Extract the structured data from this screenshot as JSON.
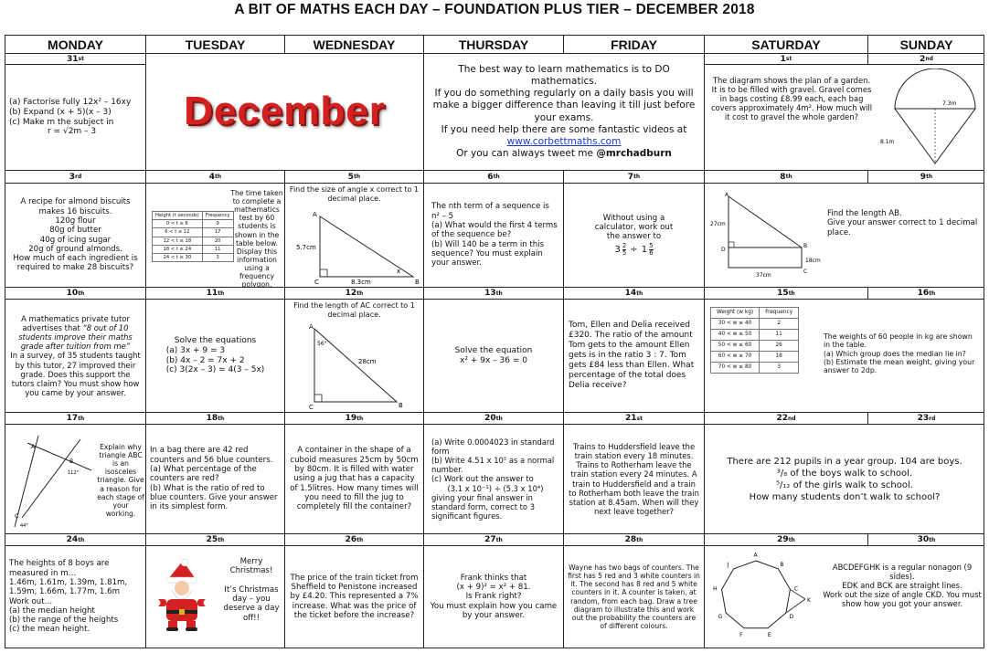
{
  "title": "A BIT OF MATHS EACH DAY – FOUNDATION PLUS TIER – DECEMBER 2018",
  "days": [
    "MONDAY",
    "TUESDAY",
    "WEDNESDAY",
    "THURSDAY",
    "FRIDAY",
    "SATURDAY",
    "SUNDAY"
  ],
  "dates": {
    "r1": [
      {
        "n": "31",
        "s": "st"
      },
      {
        "n": "",
        "s": ""
      },
      {
        "n": "",
        "s": ""
      },
      {
        "n": "",
        "s": ""
      },
      {
        "n": "",
        "s": ""
      },
      {
        "n": "1",
        "s": "st"
      },
      {
        "n": "2",
        "s": "nd"
      }
    ],
    "r2": [
      {
        "n": "3",
        "s": "rd"
      },
      {
        "n": "4",
        "s": "th"
      },
      {
        "n": "5",
        "s": "th"
      },
      {
        "n": "6",
        "s": "th"
      },
      {
        "n": "7",
        "s": "th"
      },
      {
        "n": "8",
        "s": "th"
      },
      {
        "n": "9",
        "s": "th"
      }
    ],
    "r3": [
      {
        "n": "10",
        "s": "th"
      },
      {
        "n": "11",
        "s": "th"
      },
      {
        "n": "12",
        "s": "th"
      },
      {
        "n": "13",
        "s": "th"
      },
      {
        "n": "14",
        "s": "th"
      },
      {
        "n": "15",
        "s": "th"
      },
      {
        "n": "16",
        "s": "th"
      }
    ],
    "r4": [
      {
        "n": "17",
        "s": "th"
      },
      {
        "n": "18",
        "s": "th"
      },
      {
        "n": "19",
        "s": "th"
      },
      {
        "n": "20",
        "s": "th"
      },
      {
        "n": "21",
        "s": "st"
      },
      {
        "n": "22",
        "s": "nd"
      },
      {
        "n": "23",
        "s": "rd"
      }
    ],
    "r5": [
      {
        "n": "24",
        "s": "th"
      },
      {
        "n": "25",
        "s": "th"
      },
      {
        "n": "26",
        "s": "th"
      },
      {
        "n": "27",
        "s": "th"
      },
      {
        "n": "28",
        "s": "th"
      },
      {
        "n": "29",
        "s": "th"
      },
      {
        "n": "30",
        "s": "th"
      }
    ]
  },
  "banner": "December",
  "intro": {
    "l1": "The best way to learn mathematics is to DO mathematics.",
    "l2": "If you do something regularly on a daily basis you will make a bigger difference than leaving it till just before your exams.",
    "l3": "If you need help there are some fantastic videos at",
    "link": "www.corbettmaths.com",
    "l4": "Or you can always tweet me",
    "handle": "@mrchadburn"
  },
  "q31": {
    "a": "(a)  Factorise fully 12x² – 16xy",
    "b": "(b)  Expand (x + 5)(x – 3)",
    "c": "(c)  Make m the subject in",
    "formula": "r = √2m – 3"
  },
  "q1": {
    "text": "The diagram shows the plan of a garden.  It is to be filled with gravel. Gravel comes in bags costing £8.99 each, each bag covers approximately 4m². How much will it cost to gravel the whole garden?",
    "d1": "7.3m",
    "d2": "8.1m"
  },
  "q3": {
    "lines": [
      "A recipe for almond biscuits makes 16 biscuits.",
      "120g flour",
      "80g of butter",
      "40g of icing sugar",
      "20g of ground almonds.",
      "How much of each ingredient is required to make 28 biscuits?"
    ]
  },
  "q4": {
    "text": "The time taken to complete a mathematics test by 60 students is shown in the table below. Display this information using a frequency polygon.",
    "headers": [
      "Height (t seconds)",
      "Frequency"
    ],
    "rows": [
      [
        "0 < t ≤ 6",
        "9"
      ],
      [
        "6 < t ≤ 12",
        "17"
      ],
      [
        "12 < t ≤ 18",
        "20"
      ],
      [
        "18 < t ≤ 24",
        "11"
      ],
      [
        "24 < t ≤ 30",
        "3"
      ]
    ]
  },
  "q5": {
    "text": "Find the size of angle x correct to 1 decimal place.",
    "a": "A",
    "b": "B",
    "c": "C",
    "s1": "5.7cm",
    "s2": "8.3cm",
    "x": "x"
  },
  "q6": {
    "l1": "The nth term of a sequence is n² – 5",
    "a": "(a)  What would the first 4 terms of the sequence be?",
    "b": "(b)  Will 140 be a term in this sequence?  You must explain your answer."
  },
  "q7": {
    "text": "Without using a calculator, work out the answer to",
    "w1": "3",
    "n1": "2",
    "d1": "5",
    "op": "÷",
    "w2": "1",
    "n2": "5",
    "d2": "6"
  },
  "q8": {
    "text": "Find the length AB.",
    "text2": "Give your answer correct to 1 decimal place.",
    "A": "A",
    "B": "B",
    "C": "C",
    "D": "D",
    "s1": "27cm",
    "s2": "18cm",
    "s3": "37cm"
  },
  "q10": {
    "p1": "A mathematics private tutor advertises that",
    "quote": "“8 out of 10 students improve their maths grade after tuition from me”",
    "p2": "In a survey, of 35 students taught by this tutor, 27 improved their grade. Does this support the tutors claim?  You must show how you came by your answer."
  },
  "q11": {
    "title": "Solve the equations",
    "a": "(a)  3x + 9 = 3",
    "b": "(b)  4x – 2 = 7x + 2",
    "c": "(c)  3(2x – 3) = 4(3 – 5x)"
  },
  "q12": {
    "text": "Find the length of AC correct to 1 decimal place.",
    "a": "A",
    "b": "B",
    "c": "C",
    "ang": "56°",
    "side": "28cm"
  },
  "q13": {
    "l1": "Solve the equation",
    "l2": "x² + 9x – 36 = 0"
  },
  "q14": {
    "text": "Tom, Ellen and Delia received £320.  The ratio of the amount Tom gets to the amount Ellen gets is in the ratio 3 : 7.  Tom gets £84 less than Ellen.  What percentage of the total does Delia receive?"
  },
  "q15": {
    "headers": [
      "Weight (w kg)",
      "Frequency"
    ],
    "rows": [
      [
        "30 < w ≤ 40",
        "2"
      ],
      [
        "40 < w ≤ 50",
        "11"
      ],
      [
        "50 < w ≤ 60",
        "26"
      ],
      [
        "60 < w ≤ 70",
        "18"
      ],
      [
        "70 < w ≤ 80",
        "3"
      ]
    ],
    "l1": "The weights of 60 people in kg are shown in the table.",
    "a": "(a) Which group does the median lie in?",
    "b": "(b) Estimate the mean weight, giving your answer to 2dp."
  },
  "q17": {
    "text": "Explain why triangle ABC is an isosceles triangle. Give a reason for each stage of your working.",
    "a": "A",
    "b": "B",
    "c": "C",
    "ang1": "112°",
    "ang2": "44°"
  },
  "q18": {
    "p1": "In a bag there are 42 red counters and 56 blue counters.",
    "a": "(a)  What percentage of the counters are red?",
    "b": "(b)  What is the ratio of red to blue counters.  Give your answer in its simplest form."
  },
  "q19": {
    "text": "A container in the shape of a cuboid measures 25cm by 50cm by 80cm.  It is filled with water using a jug that has a capacity of 1.5litres. How many times will you need to fill the jug to completely fill the container?"
  },
  "q20": {
    "a": "(a)  Write 0.0004023 in standard form",
    "b": "(b)  Write 4.51 x 10⁵ as a normal number.",
    "c": "(c)  Work out the answer to",
    "calc": "(3.1 x 10⁻¹) ÷ (5.3 x 10⁴)",
    "c2": "giving your final answer in standard form, correct to 3 significant figures."
  },
  "q21": {
    "text": "Trains to Huddersfield leave the train station every 18 minutes. Trains to Rotherham leave the train station every 24 minutes. A train to Huddersfield and a train to Rotherham both leave the train station at 8.45am. When will they next leave together?"
  },
  "q22": {
    "l1": "There are 212 pupils in a year group.  104 are boys.",
    "l2": "³/₈ of the boys walk to school.",
    "l3": "⁵/₁₂ of the girls walk to school.",
    "l4": "How many students don’t walk to school?"
  },
  "q24": {
    "lines": [
      "The heights of 8 boys are measured in m…",
      "1.46m, 1.61m, 1.39m, 1.81m,",
      "1.59m, 1.66m, 1.77m, 1.6m",
      "Work out…",
      "(a) the median height",
      "(b) the range of the heights",
      "(c) the mean height."
    ]
  },
  "q25": {
    "l1": "Merry Christmas!",
    "l2": "It’s Christmas day – you deserve a day off!!"
  },
  "q26": {
    "text": "The price of the train ticket from Sheffield to Penistone increased by £4.20. This represented a 7% increase.  What was the price of the ticket before the increase?"
  },
  "q27": {
    "l1": "Frank thinks that",
    "l2": "(x + 9)² = x² + 81.",
    "l3": "Is Frank right?",
    "l4": "You must explain how you came by your answer."
  },
  "q28": {
    "text": "Wayne has two bags of counters. The first has 5 red and 3 white counters in it. The second has 8 red and 5 white counters in it.  A counter is taken, at random, from each bag.  Draw a tree diagram to illustrate this and work out the probability the counters are of different colours."
  },
  "q29": {
    "l1": "ABCDEFGHK is a regular nonagon (9 sides).",
    "l2": "EDK and BCK are straight lines.",
    "l3": "Work out the size of angle CKD. You must show how you got your answer.",
    "labels": [
      "A",
      "B",
      "C",
      "D",
      "E",
      "F",
      "G",
      "H",
      "J"
    ],
    "k": "K"
  }
}
